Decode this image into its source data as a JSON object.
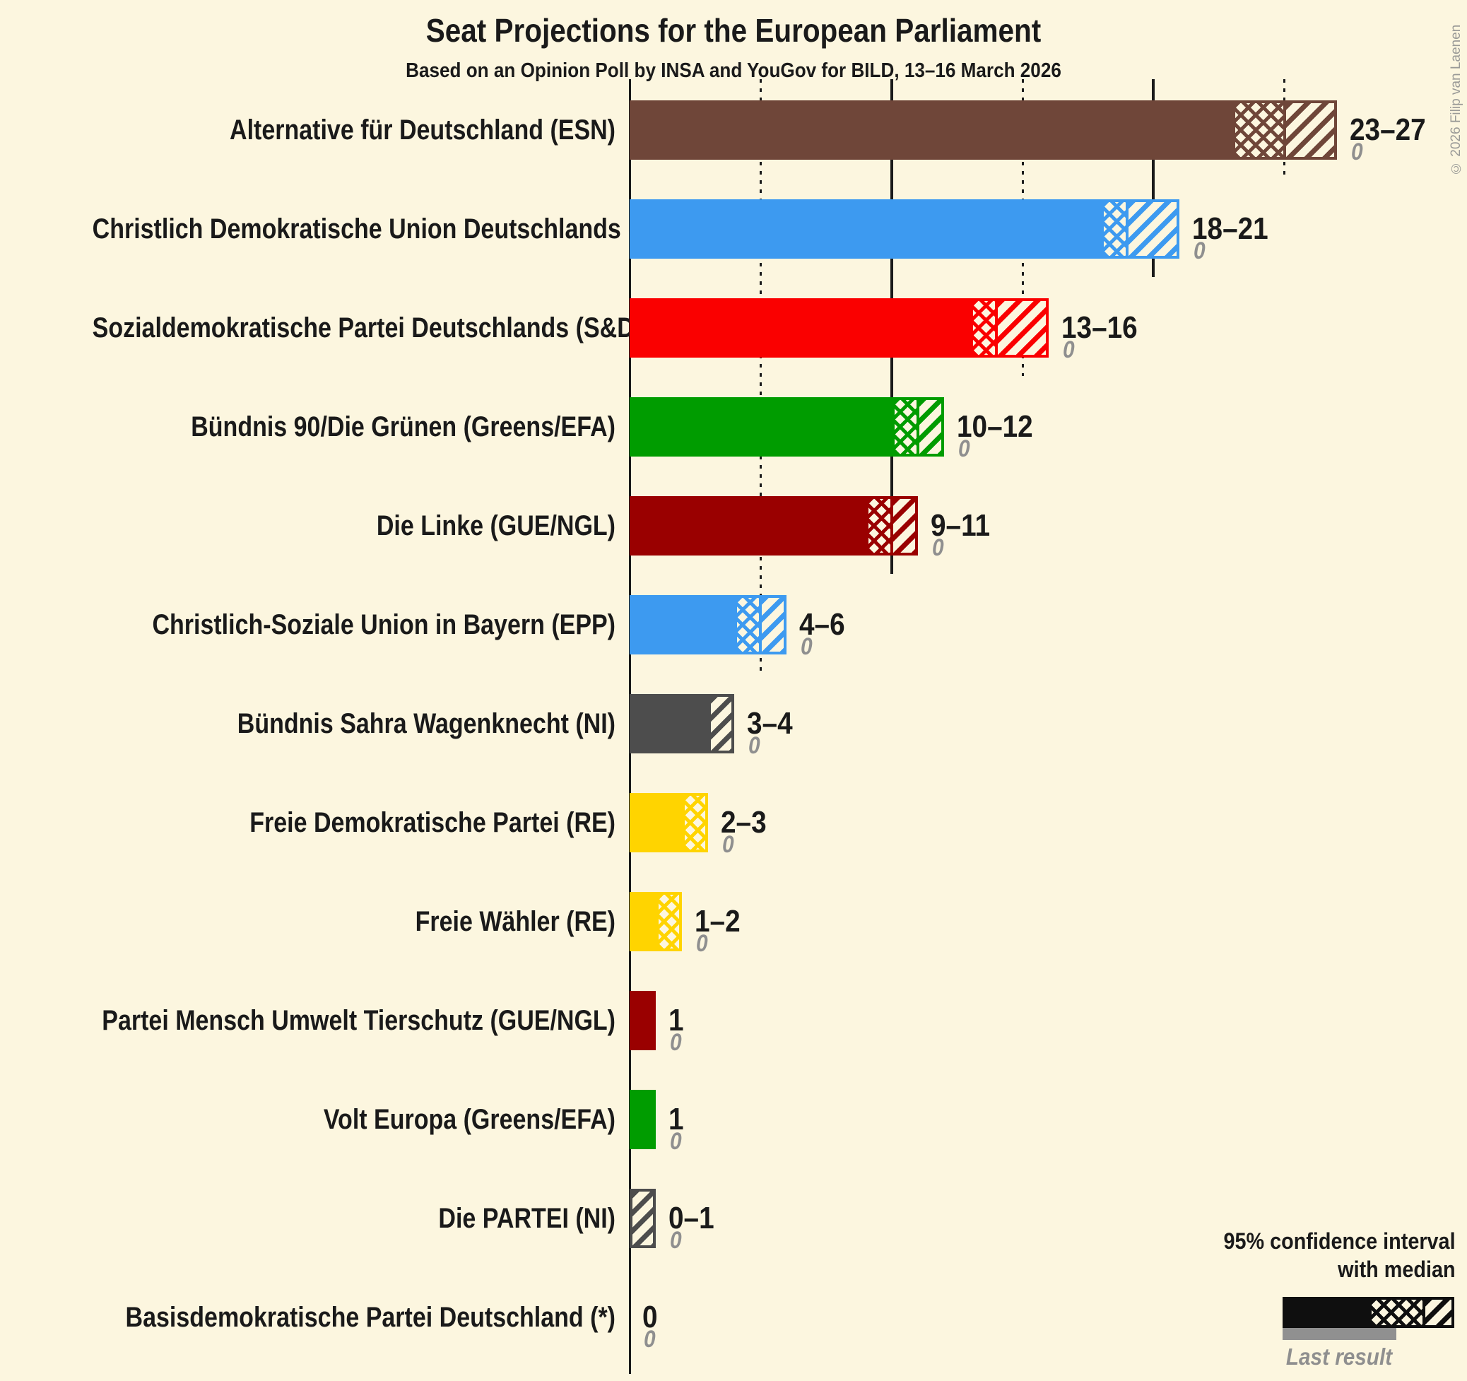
{
  "copyright": "© 2026 Filip van Laenen",
  "colors": {
    "background": "#FCF6DF",
    "text": "#1A1A1A",
    "muted_gray": "#8F8F8F",
    "legend_black": "#0F0F0F",
    "legend_last_result_gray": "#909090"
  },
  "chart_data": {
    "type": "bar",
    "orientation": "horizontal",
    "title": "Seat Projections for the European Parliament",
    "subtitle": "Based on an Opinion Poll by INSA and YouGov for BILD, 13–16 March 2026",
    "x_unit": "seats",
    "x_min": 0,
    "x_max": 27,
    "x_ticks_solid": [
      0,
      10,
      20
    ],
    "x_ticks_dotted": [
      5,
      15,
      25
    ],
    "grid": "vertical ticks only, no axis numbers shown",
    "legend": {
      "line1": "95% confidence interval",
      "line2": "with median",
      "last_result": "Last result"
    },
    "series": [
      {
        "party": "Alternative für Deutschland (ESN)",
        "low": 23,
        "median": 25,
        "high": 27,
        "range_label": "23–27",
        "last_result": 0,
        "last_result_label": "0",
        "color": "#6F4639"
      },
      {
        "party": "Christlich Demokratische Union Deutschlands (EPP)",
        "low": 18,
        "median": 19,
        "high": 21,
        "range_label": "18–21",
        "last_result": 0,
        "last_result_label": "0",
        "color": "#3D9AF0"
      },
      {
        "party": "Sozialdemokratische Partei Deutschlands (S&D)",
        "low": 13,
        "median": 14,
        "high": 16,
        "range_label": "13–16",
        "last_result": 0,
        "last_result_label": "0",
        "color": "#FA0000"
      },
      {
        "party": "Bündnis 90/Die Grünen (Greens/EFA)",
        "low": 10,
        "median": 11,
        "high": 12,
        "range_label": "10–12",
        "last_result": 0,
        "last_result_label": "0",
        "color": "#009C00"
      },
      {
        "party": "Die Linke (GUE/NGL)",
        "low": 9,
        "median": 10,
        "high": 11,
        "range_label": "9–11",
        "last_result": 0,
        "last_result_label": "0",
        "color": "#9A0000"
      },
      {
        "party": "Christlich-Soziale Union in Bayern (EPP)",
        "low": 4,
        "median": 5,
        "high": 6,
        "range_label": "4–6",
        "last_result": 0,
        "last_result_label": "0",
        "color": "#3D9AF0"
      },
      {
        "party": "Bündnis Sahra Wagenknecht (NI)",
        "low": 3,
        "median": 3,
        "high": 4,
        "range_label": "3–4",
        "last_result": 0,
        "last_result_label": "0",
        "color": "#4D4D4D"
      },
      {
        "party": "Freie Demokratische Partei (RE)",
        "low": 2,
        "median": 3,
        "high": 3,
        "range_label": "2–3",
        "last_result": 0,
        "last_result_label": "0",
        "color": "#FFD400"
      },
      {
        "party": "Freie Wähler (RE)",
        "low": 1,
        "median": 2,
        "high": 2,
        "range_label": "1–2",
        "last_result": 0,
        "last_result_label": "0",
        "color": "#FFD400"
      },
      {
        "party": "Partei Mensch Umwelt Tierschutz (GUE/NGL)",
        "low": 1,
        "median": 1,
        "high": 1,
        "range_label": "1",
        "last_result": 0,
        "last_result_label": "0",
        "color": "#9A0000"
      },
      {
        "party": "Volt Europa (Greens/EFA)",
        "low": 1,
        "median": 1,
        "high": 1,
        "range_label": "1",
        "last_result": 0,
        "last_result_label": "0",
        "color": "#009C00"
      },
      {
        "party": "Die PARTEI (NI)",
        "low": 0,
        "median": 0,
        "high": 1,
        "range_label": "0–1",
        "last_result": 0,
        "last_result_label": "0",
        "color": "#4D4D4D"
      },
      {
        "party": "Basisdemokratische Partei Deutschland (*)",
        "low": 0,
        "median": 0,
        "high": 0,
        "range_label": "0",
        "last_result": 0,
        "last_result_label": "0",
        "color": "#777777"
      }
    ]
  }
}
